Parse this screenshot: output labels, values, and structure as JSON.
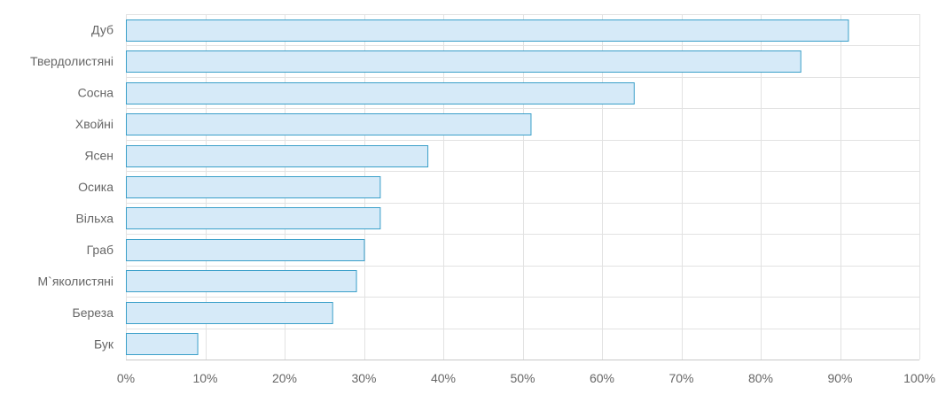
{
  "chart_data": {
    "type": "bar",
    "orientation": "horizontal",
    "categories": [
      "Дуб",
      "Твердолистяні",
      "Сосна",
      "Хвойні",
      "Ясен",
      "Осика",
      "Вільха",
      "Граб",
      "М`яколистяні",
      "Береза",
      "Бук"
    ],
    "values": [
      91,
      85,
      64,
      51,
      38,
      32,
      32,
      30,
      29,
      26,
      9
    ],
    "xlim": [
      0,
      100
    ],
    "x_ticks": [
      0,
      10,
      20,
      30,
      40,
      50,
      60,
      70,
      80,
      90,
      100
    ],
    "x_tick_labels": [
      "0%",
      "10%",
      "20%",
      "30%",
      "40%",
      "50%",
      "60%",
      "70%",
      "80%",
      "90%",
      "100%"
    ],
    "grid": true,
    "colors": {
      "bar_fill": "#d6eaf8",
      "bar_stroke": "#3a9fc9",
      "grid": "#e2e2e2",
      "axis": "#c8c8c8",
      "text": "#666666"
    }
  }
}
